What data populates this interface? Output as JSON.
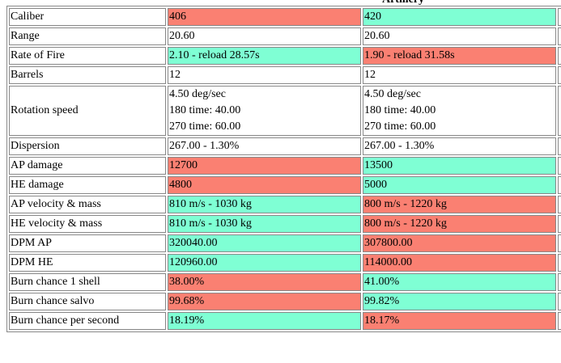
{
  "section_title": "Artillery",
  "colors": {
    "worse": "#fa8072",
    "better": "#7fffd4",
    "neutral": "#ffffff"
  },
  "rows": [
    {
      "label": "Caliber",
      "a": "406",
      "b": "420",
      "a_status": "worse",
      "b_status": "better"
    },
    {
      "label": "Range",
      "a": "20.60",
      "b": "20.60",
      "a_status": "neutral",
      "b_status": "neutral"
    },
    {
      "label": "Rate of Fire",
      "a": "2.10 - reload 28.57s",
      "b": "1.90 - reload 31.58s",
      "a_status": "better",
      "b_status": "worse"
    },
    {
      "label": "Barrels",
      "a": "12",
      "b": "12",
      "a_status": "neutral",
      "b_status": "neutral"
    },
    {
      "label": "Rotation speed",
      "a_lines": [
        "4.50 deg/sec",
        "180 time: 40.00",
        "270 time: 60.00"
      ],
      "b_lines": [
        "4.50 deg/sec",
        "180 time: 40.00",
        "270 time: 60.00"
      ],
      "a_status": "neutral",
      "b_status": "neutral"
    },
    {
      "label": "Dispersion",
      "a": "267.00 - 1.30%",
      "b": "267.00 - 1.30%",
      "a_status": "neutral",
      "b_status": "neutral"
    },
    {
      "label": "AP damage",
      "a": "12700",
      "b": "13500",
      "a_status": "worse",
      "b_status": "better"
    },
    {
      "label": "HE damage",
      "a": "4800",
      "b": "5000",
      "a_status": "worse",
      "b_status": "better"
    },
    {
      "label": "AP velocity & mass",
      "a": "810 m/s - 1030 kg",
      "b": "800 m/s - 1220 kg",
      "a_status": "better",
      "b_status": "worse"
    },
    {
      "label": "HE velocity & mass",
      "a": "810 m/s - 1030 kg",
      "b": "800 m/s - 1220 kg",
      "a_status": "better",
      "b_status": "worse"
    },
    {
      "label": "DPM AP",
      "a": "320040.00",
      "b": "307800.00",
      "a_status": "better",
      "b_status": "worse"
    },
    {
      "label": "DPM HE",
      "a": "120960.00",
      "b": "114000.00",
      "a_status": "better",
      "b_status": "worse"
    },
    {
      "label": "Burn chance 1 shell",
      "a": "38.00%",
      "b": "41.00%",
      "a_status": "worse",
      "b_status": "better"
    },
    {
      "label": "Burn chance salvo",
      "a": "99.68%",
      "b": "99.82%",
      "a_status": "worse",
      "b_status": "better"
    },
    {
      "label": "Burn chance per second",
      "a": "18.19%",
      "b": "18.17%",
      "a_status": "better",
      "b_status": "worse"
    }
  ]
}
